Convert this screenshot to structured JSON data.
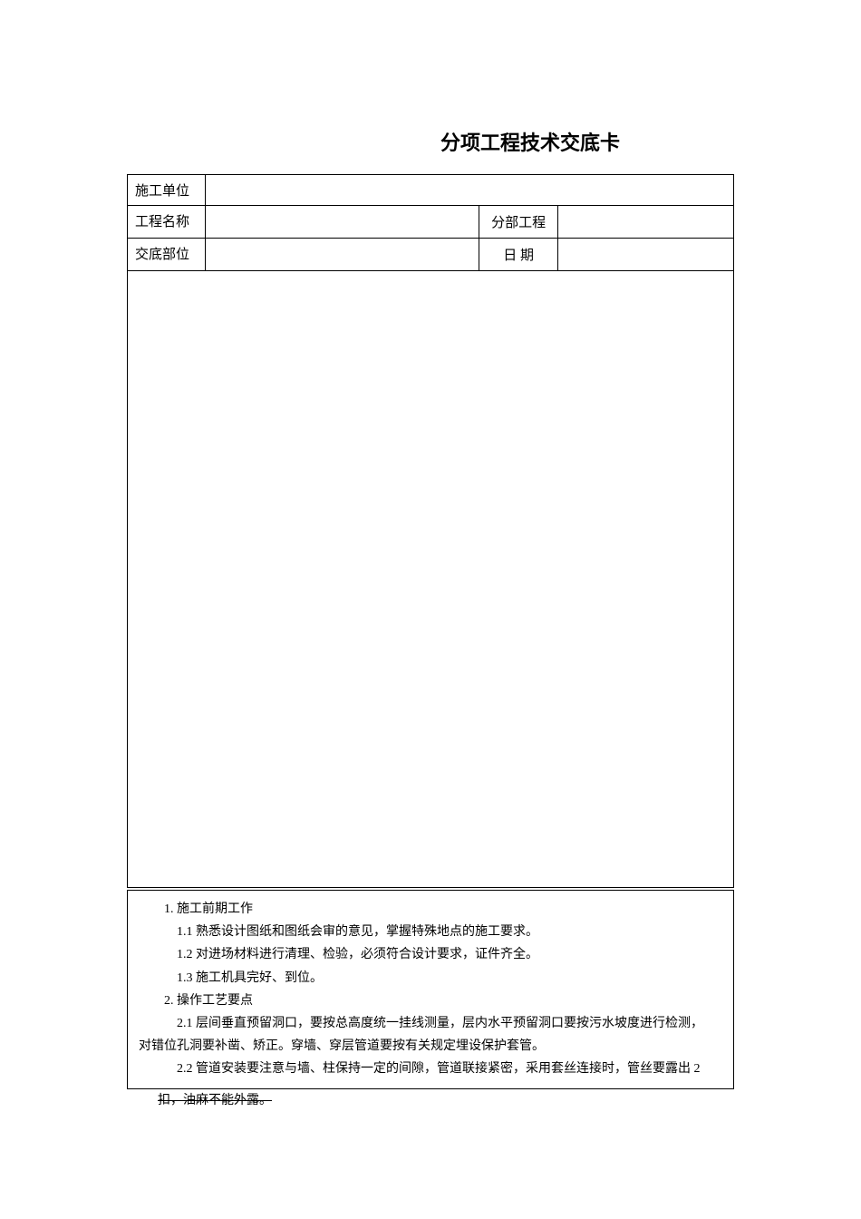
{
  "title": "分项工程技术交底卡",
  "header": {
    "row1_label": "施工单位",
    "row2_label": "工程名称",
    "row2_label2": "分部工程",
    "row3_label": "交底部位",
    "row3_label2": "日 期"
  },
  "content": {
    "section1_title": "1.  施工前期工作",
    "item_1_1": "1.1  熟悉设计图纸和图纸会审的意见，掌握特殊地点的施工要求。",
    "item_1_2": "1.2  对进场材料进行清理、检验，必须符合设计要求，证件齐全。",
    "item_1_3": "1.3  施工机具完好、到位。",
    "section2_title": "2.  操作工艺要点",
    "item_2_1": "2.1  层间垂直预留洞口，要按总高度统一挂线测量，层内水平预留洞口要按污水坡度进行检测，",
    "item_2_1_cont": "对错位孔洞要补凿、矫正。穿墙、穿层管道要按有关规定埋设保护套管。",
    "item_2_2": "2.2  管道安装要注意与墙、柱保持一定的间隙，管道联接紧密，采用套丝连接时，管丝要露出 2",
    "overflow": "扣，油麻不能外露。"
  },
  "styling": {
    "background_color": "#ffffff",
    "border_color": "#000000",
    "title_fontsize": 22,
    "body_fontsize": 14,
    "header_fontsize": 15,
    "font_family": "SimSun"
  }
}
